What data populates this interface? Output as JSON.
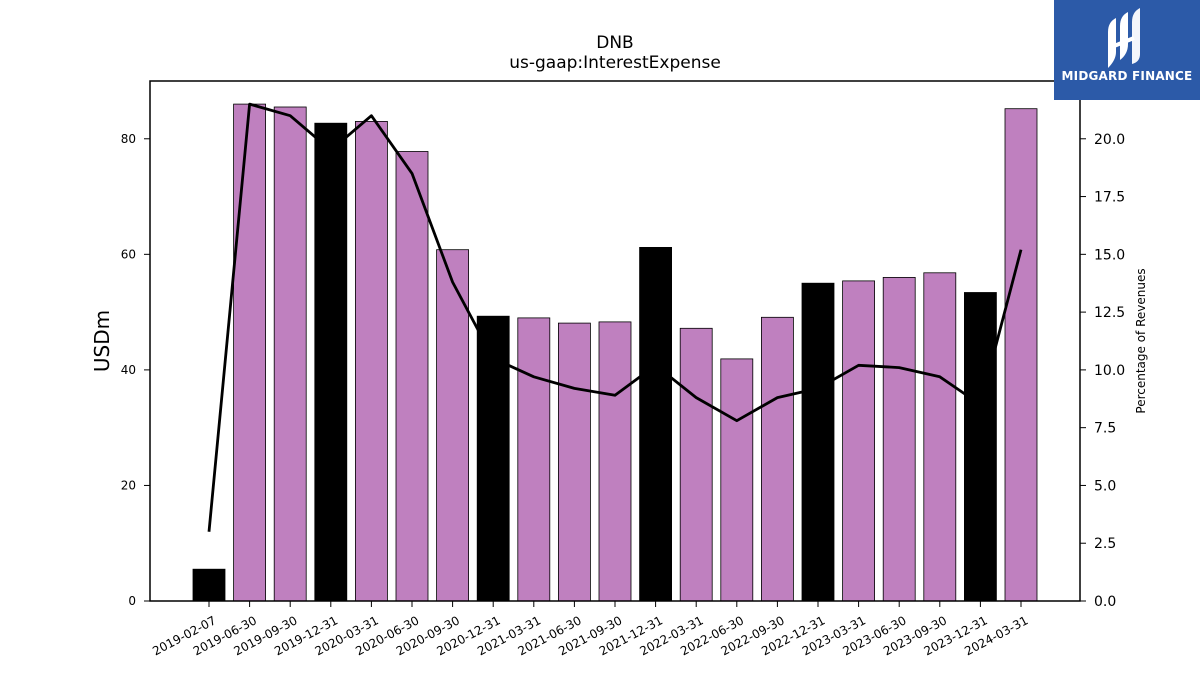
{
  "logo": {
    "text": "MIDGARD FINANCE",
    "icon": "midgard-m-logo-icon",
    "bg_color": "#2c5aa8"
  },
  "chart_data": {
    "type": "bar",
    "title": "DNB",
    "subtitle": "us-gaap:InterestExpense",
    "ylabel": "USDm",
    "y2label": "Percentage of Revenues",
    "ylim": [
      0,
      90
    ],
    "y2lim": [
      0,
      22.5
    ],
    "yticks": [
      0,
      20,
      40,
      60,
      80
    ],
    "y2ticks": [
      0.0,
      2.5,
      5.0,
      7.5,
      10.0,
      12.5,
      15.0,
      17.5,
      20.0
    ],
    "categories": [
      "2019-02-07",
      "2019-06-30",
      "2019-09-30",
      "2019-12-31",
      "2020-03-31",
      "2020-06-30",
      "2020-09-30",
      "2020-12-31",
      "2021-03-31",
      "2021-06-30",
      "2021-09-30",
      "2021-12-31",
      "2022-03-31",
      "2022-06-30",
      "2022-09-30",
      "2022-12-31",
      "2023-03-31",
      "2023-06-30",
      "2023-09-30",
      "2023-12-31",
      "2024-03-31"
    ],
    "series": [
      {
        "type": "bar",
        "values": [
          5.5,
          86.0,
          85.5,
          82.7,
          83.0,
          77.8,
          60.8,
          49.3,
          49.0,
          48.1,
          48.3,
          61.2,
          47.2,
          41.9,
          49.1,
          55.0,
          55.4,
          56.0,
          56.8,
          53.4,
          85.2
        ],
        "colors": [
          "#000000",
          "#bf80bf",
          "#bf80bf",
          "#000000",
          "#bf80bf",
          "#bf80bf",
          "#bf80bf",
          "#000000",
          "#bf80bf",
          "#bf80bf",
          "#bf80bf",
          "#000000",
          "#bf80bf",
          "#bf80bf",
          "#bf80bf",
          "#000000",
          "#bf80bf",
          "#bf80bf",
          "#bf80bf",
          "#000000",
          "#bf80bf"
        ]
      },
      {
        "type": "line",
        "axis": "right",
        "color": "#000000",
        "values": [
          3.0,
          21.5,
          21.0,
          19.5,
          21.0,
          18.5,
          13.8,
          10.5,
          9.7,
          9.2,
          8.9,
          10.2,
          8.8,
          7.8,
          8.8,
          9.2,
          10.2,
          10.1,
          9.7,
          8.5,
          15.2
        ]
      }
    ],
    "grid": false
  }
}
